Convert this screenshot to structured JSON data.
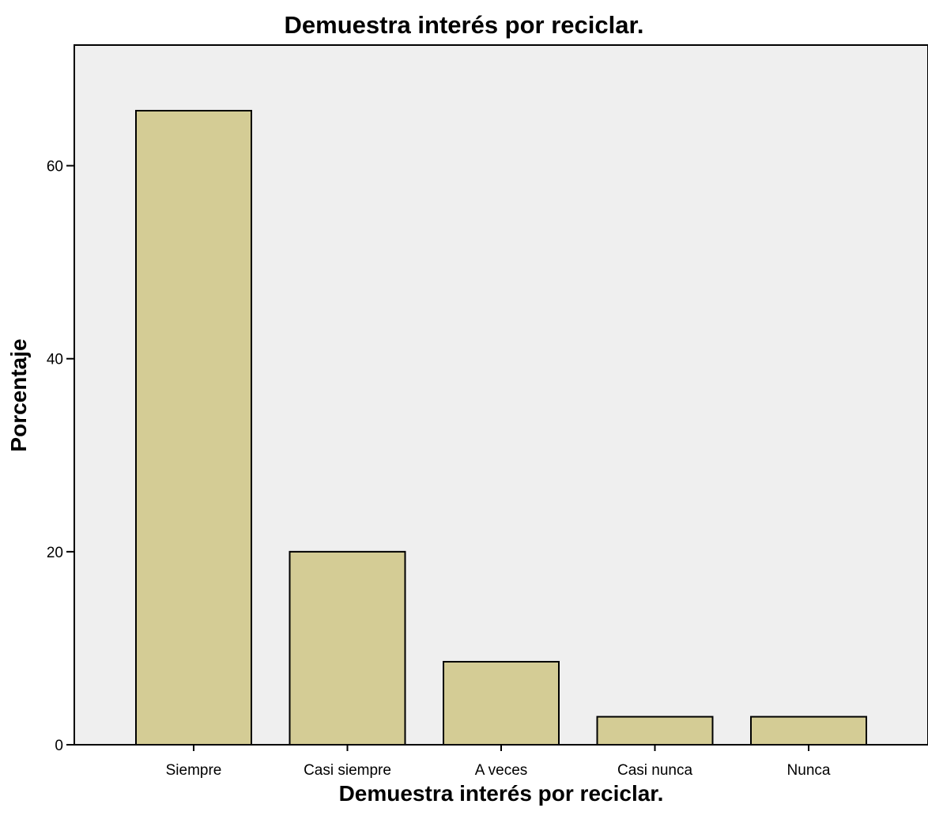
{
  "chart_data": {
    "type": "bar",
    "title": "Demuestra interés por reciclar.",
    "xlabel": "Demuestra interés por reciclar.",
    "ylabel": "Porcentaje",
    "categories": [
      "Siempre",
      "Casi siempre",
      "A veces",
      "Casi nunca",
      "Nunca"
    ],
    "values": [
      65.7,
      20.0,
      8.6,
      2.9,
      2.9
    ],
    "ylim": [
      0,
      72.5
    ],
    "yticks": [
      0,
      20,
      40,
      60
    ],
    "grid": false,
    "legend": "none",
    "colors": {
      "bar_fill": "#d4cc95",
      "bar_stroke": "#000000",
      "plot_background": "#efefef"
    }
  }
}
